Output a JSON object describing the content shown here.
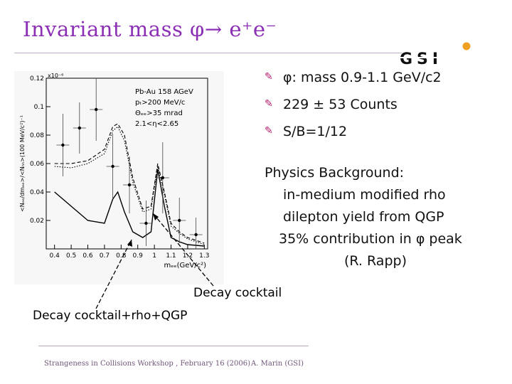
{
  "slide": {
    "title": "Invariant mass φ→ e⁺e⁻",
    "bullets": [
      "φ: mass 0.9-1.1 GeV/c2",
      "229 ± 53  Counts",
      "S/B=1/12"
    ],
    "physics": {
      "heading": "Physics Background:",
      "lines": [
        "in-medium modified rho",
        "dilepton yield from QGP",
        "35% contribution in φ peak",
        "(R. Rapp)"
      ]
    },
    "annotations": {
      "decay": "Decay cocktail",
      "decay_rho_qgp": "Decay cocktail+rho+QGP"
    },
    "footer": {
      "left": "Strangeness in Collisions Workshop , February 16 (2006)",
      "right": "A. Marin (GSI)"
    },
    "logo_text": "GSI",
    "colors": {
      "title": "#8b2fb5",
      "bullet": "#b31b6b",
      "logo_dot": "#f0a020"
    }
  },
  "chart_data": {
    "type": "line",
    "ylabel": "<Nₑₑ/dmₑₑ>/<Nₕₕ>(100 MeV/c²)⁻¹",
    "xlabel": "mₑₑ(GeV/c²)",
    "y_exponent": "x10⁻⁶",
    "ylim": [
      0,
      0.12
    ],
    "xlim": [
      0.35,
      1.32
    ],
    "xticks": [
      "0.4",
      "0.5",
      "0.6",
      "0.7",
      "0.8",
      "0.9",
      "1",
      "1.1",
      "1.2",
      "1.3"
    ],
    "yticks": [
      "0.02",
      "0.04",
      "0.06",
      "0.08",
      "0.1",
      "0.12"
    ],
    "legend": [
      "Pb-Au 158 AGeV",
      "pₜ>200 MeV/c",
      "Θₑₑ>35 mrad",
      "2.1<η<2.65"
    ],
    "data_points": {
      "x": [
        0.45,
        0.55,
        0.65,
        0.75,
        0.85,
        0.95,
        1.05,
        1.15,
        1.25
      ],
      "y": [
        0.073,
        0.085,
        0.098,
        0.058,
        0.045,
        0.018,
        0.05,
        0.02,
        0.01
      ],
      "err": [
        0.022,
        0.018,
        0.022,
        0.023,
        0.02,
        0.016,
        0.025,
        0.016,
        0.012
      ]
    },
    "series": [
      {
        "x": [
          0.4,
          0.5,
          0.6,
          0.7,
          0.75,
          0.78,
          0.82,
          0.87,
          0.93,
          0.98,
          1.02,
          1.06,
          1.1,
          1.15,
          1.2,
          1.3
        ],
        "y": [
          0.06,
          0.06,
          0.062,
          0.07,
          0.086,
          0.088,
          0.08,
          0.05,
          0.028,
          0.03,
          0.06,
          0.04,
          0.018,
          0.012,
          0.008,
          0.004
        ],
        "style": "dashed"
      },
      {
        "x": [
          0.4,
          0.5,
          0.6,
          0.7,
          0.75,
          0.78,
          0.82,
          0.87,
          0.93,
          0.98,
          1.02,
          1.06,
          1.1,
          1.15,
          1.2,
          1.3
        ],
        "y": [
          0.058,
          0.057,
          0.06,
          0.067,
          0.083,
          0.086,
          0.076,
          0.047,
          0.026,
          0.028,
          0.058,
          0.038,
          0.016,
          0.011,
          0.007,
          0.003
        ],
        "style": "dotted"
      },
      {
        "x": [
          0.4,
          0.5,
          0.6,
          0.7,
          0.75,
          0.78,
          0.82,
          0.87,
          0.93,
          0.98,
          1.02,
          1.06,
          1.1,
          1.15,
          1.2,
          1.3
        ],
        "y": [
          0.04,
          0.03,
          0.02,
          0.018,
          0.035,
          0.04,
          0.026,
          0.012,
          0.008,
          0.012,
          0.056,
          0.03,
          0.008,
          0.005,
          0.003,
          0.002
        ],
        "style": "solid"
      }
    ]
  }
}
